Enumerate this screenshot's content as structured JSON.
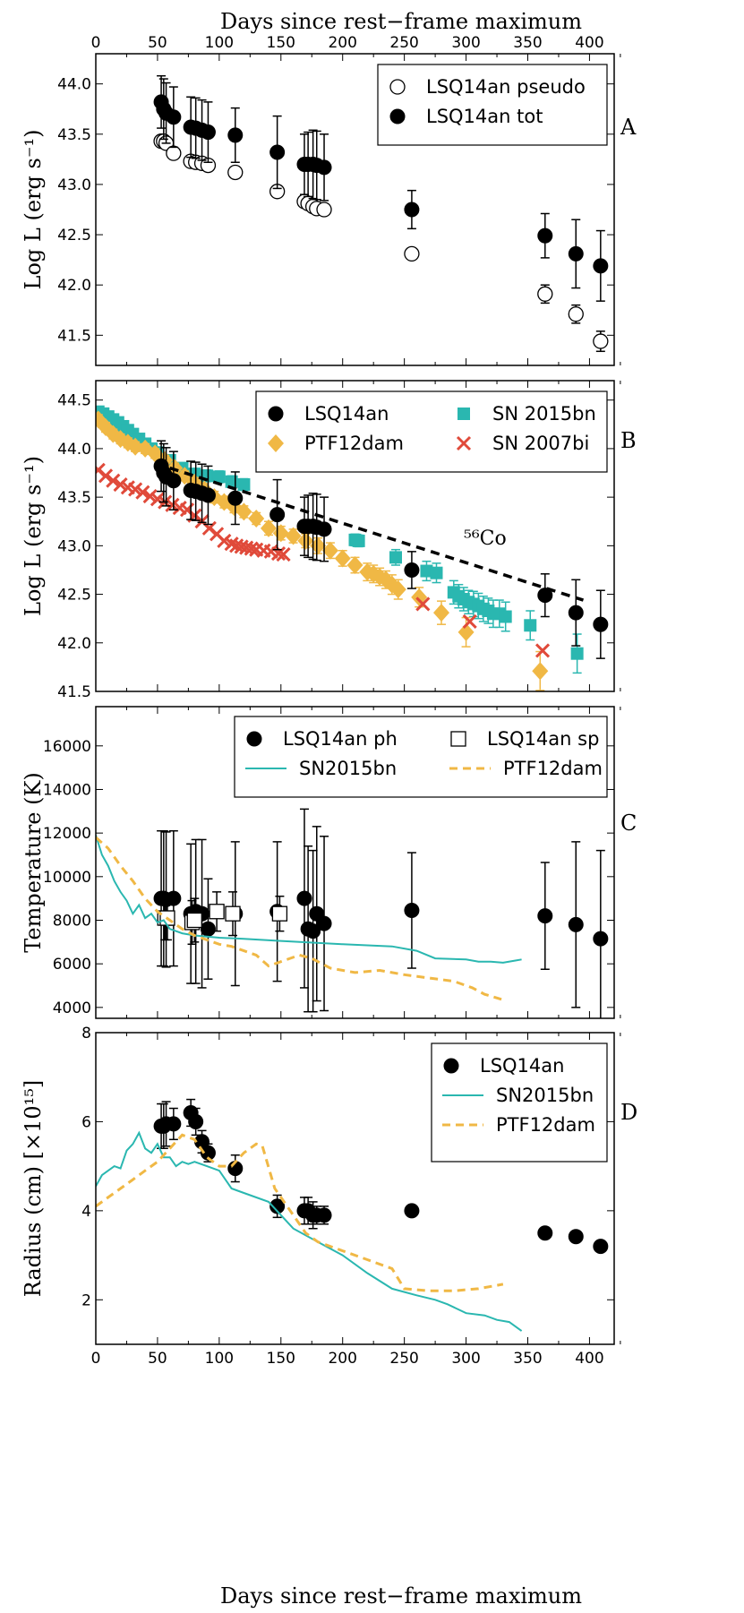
{
  "figure": {
    "top_axis_label": "Days since rest−frame maximum",
    "bottom_axis_label": "Days since rest−frame maximum",
    "x_ticks": [
      "0",
      "50",
      "100",
      "150",
      "200",
      "250",
      "300",
      "350",
      "400"
    ],
    "colors": {
      "tot": "#000000",
      "sn2015bn": "#2ab7b0",
      "ptf12dam": "#f0b845",
      "sn2007bi": "#e04a3a"
    }
  },
  "chart_data": [
    {
      "panel": "A",
      "type": "scatter",
      "ylabel": "Log L (erg s⁻¹)",
      "xlim": [
        0,
        420
      ],
      "ylim": [
        41.2,
        44.3
      ],
      "y_ticks": [
        "41.5",
        "42.0",
        "42.5",
        "43.0",
        "43.5",
        "44.0"
      ],
      "legend": [
        "LSQ14an pseudo",
        "LSQ14an tot"
      ],
      "series": [
        {
          "name": "LSQ14an pseudo",
          "marker": "open-circle",
          "x": [
            53,
            55,
            57,
            63,
            77,
            81,
            86,
            91,
            113,
            147,
            169,
            172,
            176,
            179,
            185,
            256,
            364,
            389,
            409
          ],
          "y": [
            43.43,
            43.43,
            43.41,
            43.31,
            43.23,
            43.22,
            43.21,
            43.19,
            43.12,
            42.93,
            42.83,
            42.81,
            42.78,
            42.76,
            42.75,
            42.31,
            41.91,
            41.71,
            41.44
          ],
          "yerr": [
            0.04,
            0.04,
            0.04,
            0.04,
            0.04,
            0.04,
            0.04,
            0.04,
            0.04,
            0.05,
            0.04,
            0.04,
            0.04,
            0.04,
            0.04,
            0.04,
            0.09,
            0.09,
            0.1
          ]
        },
        {
          "name": "LSQ14an tot",
          "marker": "filled-circle",
          "x": [
            53,
            55,
            57,
            63,
            77,
            81,
            86,
            91,
            113,
            147,
            169,
            172,
            176,
            179,
            185,
            256,
            364,
            389,
            409
          ],
          "y": [
            43.82,
            43.75,
            43.71,
            43.67,
            43.57,
            43.56,
            43.54,
            43.52,
            43.49,
            43.32,
            43.2,
            43.2,
            43.2,
            43.19,
            43.17,
            42.75,
            42.49,
            42.31,
            42.19
          ],
          "yerr": [
            0.26,
            0.3,
            0.3,
            0.3,
            0.3,
            0.3,
            0.3,
            0.3,
            0.27,
            0.36,
            0.3,
            0.32,
            0.34,
            0.34,
            0.33,
            0.19,
            0.22,
            0.34,
            0.35
          ]
        }
      ]
    },
    {
      "panel": "B",
      "type": "scatter",
      "ylabel": "Log L (erg s⁻¹)",
      "xlim": [
        0,
        420
      ],
      "ylim": [
        41.5,
        44.7
      ],
      "y_ticks": [
        "41.5",
        "42.0",
        "42.5",
        "43.0",
        "43.5",
        "44.0",
        "44.5"
      ],
      "legend": [
        "LSQ14an",
        "SN 2015bn",
        "PTF12dam",
        "SN 2007bi"
      ],
      "annotation": "⁵⁶Co",
      "series": [
        {
          "name": "SN 2015bn",
          "marker": "square",
          "x": [
            2,
            6,
            10,
            14,
            18,
            22,
            26,
            30,
            35,
            40,
            45,
            50,
            60,
            70,
            80,
            90,
            100,
            110,
            120,
            210,
            213,
            243,
            268,
            276,
            290,
            294,
            298,
            302,
            306,
            310,
            314,
            318,
            322,
            327,
            332,
            352,
            390
          ],
          "y": [
            44.38,
            44.36,
            44.33,
            44.3,
            44.27,
            44.23,
            44.19,
            44.15,
            44.1,
            44.05,
            44.0,
            43.96,
            43.88,
            43.8,
            43.74,
            43.72,
            43.71,
            43.66,
            43.63,
            43.06,
            43.05,
            42.88,
            42.74,
            42.72,
            42.52,
            42.48,
            42.45,
            42.42,
            42.4,
            42.38,
            42.35,
            42.33,
            42.3,
            42.3,
            42.27,
            42.18,
            41.89
          ],
          "yerr": [
            0.04,
            0.04,
            0.04,
            0.04,
            0.04,
            0.04,
            0.04,
            0.04,
            0.05,
            0.05,
            0.05,
            0.05,
            0.05,
            0.05,
            0.05,
            0.06,
            0.06,
            0.06,
            0.06,
            0.06,
            0.06,
            0.08,
            0.1,
            0.1,
            0.12,
            0.12,
            0.12,
            0.12,
            0.13,
            0.13,
            0.13,
            0.13,
            0.14,
            0.14,
            0.15,
            0.15,
            0.2
          ]
        },
        {
          "name": "PTF12dam",
          "marker": "diamond",
          "x": [
            2,
            8,
            14,
            20,
            26,
            32,
            40,
            48,
            56,
            64,
            72,
            80,
            88,
            96,
            104,
            112,
            120,
            130,
            140,
            150,
            160,
            170,
            180,
            190,
            200,
            210,
            220,
            225,
            230,
            235,
            240,
            245,
            262,
            280,
            300,
            360
          ],
          "y": [
            44.3,
            44.22,
            44.15,
            44.1,
            44.06,
            44.02,
            44.0,
            43.95,
            43.88,
            43.8,
            43.72,
            43.65,
            43.58,
            43.5,
            43.45,
            43.4,
            43.35,
            43.28,
            43.18,
            43.13,
            43.1,
            43.05,
            43.0,
            42.95,
            42.87,
            42.8,
            42.73,
            42.71,
            42.68,
            42.65,
            42.6,
            42.55,
            42.47,
            42.31,
            42.11,
            41.71
          ],
          "yerr": [
            0.05,
            0.05,
            0.05,
            0.05,
            0.05,
            0.05,
            0.05,
            0.05,
            0.05,
            0.05,
            0.05,
            0.05,
            0.06,
            0.06,
            0.06,
            0.06,
            0.06,
            0.06,
            0.07,
            0.07,
            0.07,
            0.07,
            0.08,
            0.08,
            0.08,
            0.08,
            0.09,
            0.09,
            0.09,
            0.09,
            0.1,
            0.1,
            0.1,
            0.12,
            0.15,
            0.2
          ]
        },
        {
          "name": "SN 2007bi",
          "marker": "x",
          "x": [
            2,
            8,
            14,
            20,
            26,
            32,
            38,
            44,
            50,
            56,
            62,
            68,
            74,
            80,
            86,
            92,
            98,
            104,
            110,
            114,
            118,
            122,
            126,
            130,
            136,
            142,
            148,
            152,
            265,
            303,
            362
          ],
          "y": [
            43.78,
            43.72,
            43.67,
            43.63,
            43.6,
            43.58,
            43.55,
            43.51,
            43.48,
            43.45,
            43.42,
            43.39,
            43.37,
            43.31,
            43.25,
            43.18,
            43.12,
            43.05,
            43.02,
            43.0,
            42.99,
            42.98,
            42.97,
            42.96,
            42.95,
            42.94,
            42.92,
            42.91,
            42.4,
            42.22,
            41.92
          ],
          "yerr": []
        },
        {
          "name": "LSQ14an",
          "marker": "filled-circle",
          "x": [
            53,
            55,
            57,
            63,
            77,
            81,
            86,
            91,
            113,
            147,
            169,
            172,
            176,
            179,
            185,
            256,
            364,
            389,
            409
          ],
          "y": [
            43.82,
            43.75,
            43.71,
            43.67,
            43.57,
            43.56,
            43.54,
            43.52,
            43.49,
            43.32,
            43.2,
            43.2,
            43.2,
            43.19,
            43.17,
            42.75,
            42.49,
            42.31,
            42.19
          ],
          "yerr": [
            0.26,
            0.3,
            0.3,
            0.3,
            0.3,
            0.3,
            0.3,
            0.3,
            0.27,
            0.36,
            0.3,
            0.32,
            0.34,
            0.34,
            0.33,
            0.19,
            0.22,
            0.34,
            0.35
          ]
        },
        {
          "name": "56Co decay",
          "marker": "dashed-line",
          "x": [
            60,
            395
          ],
          "y": [
            43.8,
            42.44
          ]
        }
      ]
    },
    {
      "panel": "C",
      "type": "line",
      "ylabel": "Temperature (K)",
      "xlim": [
        0,
        420
      ],
      "ylim": [
        3500,
        17800
      ],
      "y_ticks": [
        "4000",
        "6000",
        "8000",
        "10000",
        "12000",
        "14000",
        "16000"
      ],
      "legend": [
        "LSQ14an ph",
        "LSQ14an sp",
        "SN2015bn",
        "PTF12dam"
      ],
      "series": [
        {
          "name": "LSQ14an ph",
          "marker": "filled-circle",
          "x": [
            53,
            55,
            57,
            63,
            77,
            81,
            86,
            91,
            113,
            147,
            169,
            172,
            176,
            179,
            185,
            256,
            364,
            389,
            409
          ],
          "y": [
            9000,
            9000,
            8950,
            9000,
            8300,
            8400,
            8300,
            7600,
            8300,
            8400,
            9000,
            7600,
            7500,
            8300,
            7850,
            8450,
            8200,
            7800,
            7150
          ],
          "yerr": [
            3100,
            3100,
            3100,
            3100,
            3200,
            3300,
            3400,
            2300,
            3300,
            3200,
            4100,
            3800,
            3700,
            4000,
            4000,
            2650,
            2450,
            3800,
            4050
          ]
        },
        {
          "name": "LSQ14an sp",
          "marker": "open-square",
          "x": [
            56,
            58,
            78,
            80,
            98,
            111,
            149
          ],
          "y": [
            8100,
            8100,
            7900,
            8000,
            8400,
            8300,
            8300
          ],
          "yerr": [
            1000,
            1000,
            1000,
            1000,
            900,
            1000,
            800
          ]
        },
        {
          "name": "SN2015bn",
          "marker": "line",
          "x": [
            0,
            5,
            10,
            15,
            20,
            25,
            30,
            35,
            40,
            45,
            50,
            55,
            60,
            70,
            80,
            100,
            120,
            150,
            200,
            240,
            260,
            275,
            300,
            310,
            320,
            330,
            340,
            345
          ],
          "y": [
            11900,
            11000,
            10500,
            9800,
            9300,
            8900,
            8300,
            8700,
            8100,
            8300,
            7900,
            8000,
            7600,
            7400,
            7300,
            7200,
            7150,
            7050,
            6900,
            6800,
            6600,
            6250,
            6200,
            6100,
            6100,
            6050,
            6150,
            6200
          ]
        },
        {
          "name": "PTF12dam",
          "marker": "dashed-line",
          "x": [
            0,
            10,
            20,
            30,
            40,
            50,
            60,
            70,
            80,
            90,
            100,
            110,
            120,
            130,
            140,
            150,
            165,
            175,
            190,
            210,
            230,
            250,
            270,
            290,
            305,
            315,
            330
          ],
          "y": [
            11800,
            11300,
            10500,
            9800,
            9000,
            8400,
            8000,
            7600,
            7300,
            7100,
            6900,
            6800,
            6600,
            6400,
            5900,
            6100,
            6400,
            6250,
            5800,
            5600,
            5700,
            5500,
            5350,
            5200,
            4900,
            4600,
            4350
          ]
        }
      ]
    },
    {
      "panel": "D",
      "type": "line",
      "ylabel": "Radius (cm) [×10¹⁵]",
      "xlim": [
        0,
        420
      ],
      "ylim": [
        1,
        8
      ],
      "y_ticks": [
        "2",
        "4",
        "6",
        "8"
      ],
      "legend": [
        "LSQ14an",
        "SN2015bn",
        "PTF12dam"
      ],
      "series": [
        {
          "name": "LSQ14an",
          "marker": "filled-circle",
          "x": [
            53,
            55,
            57,
            63,
            77,
            81,
            86,
            91,
            113,
            147,
            169,
            172,
            176,
            179,
            185,
            256,
            364,
            389,
            409
          ],
          "y": [
            5.9,
            5.9,
            5.95,
            5.95,
            6.2,
            6.0,
            5.55,
            5.3,
            4.95,
            4.1,
            4.0,
            4.0,
            3.9,
            3.9,
            3.9,
            4.0,
            3.5,
            3.42,
            3.2
          ],
          "yerr": [
            0.5,
            0.5,
            0.5,
            0.35,
            0.3,
            0.3,
            0.25,
            0.2,
            0.3,
            0.25,
            0.3,
            0.3,
            0.3,
            0.2,
            0.2,
            0.0,
            0.0,
            0.0,
            0.0
          ]
        },
        {
          "name": "SN2015bn",
          "marker": "line",
          "x": [
            0,
            5,
            10,
            15,
            20,
            25,
            30,
            35,
            40,
            45,
            50,
            55,
            60,
            65,
            70,
            75,
            80,
            90,
            100,
            110,
            120,
            140,
            160,
            180,
            200,
            220,
            240,
            260,
            275,
            285,
            300,
            315,
            325,
            335,
            345
          ],
          "y": [
            4.55,
            4.8,
            4.9,
            5.0,
            4.95,
            5.35,
            5.5,
            5.75,
            5.4,
            5.3,
            5.5,
            5.2,
            5.2,
            5.0,
            5.1,
            5.05,
            5.1,
            5.0,
            4.9,
            4.5,
            4.4,
            4.2,
            3.6,
            3.3,
            3.0,
            2.6,
            2.25,
            2.1,
            2.0,
            1.9,
            1.7,
            1.65,
            1.55,
            1.5,
            1.3
          ]
        },
        {
          "name": "PTF12dam",
          "marker": "dashed-line",
          "x": [
            0,
            10,
            20,
            30,
            40,
            50,
            60,
            70,
            80,
            90,
            100,
            110,
            120,
            130,
            135,
            145,
            160,
            170,
            180,
            200,
            220,
            240,
            250,
            270,
            290,
            310,
            330
          ],
          "y": [
            4.1,
            4.3,
            4.5,
            4.7,
            4.9,
            5.1,
            5.4,
            5.7,
            5.6,
            5.2,
            5.0,
            5.0,
            5.3,
            5.5,
            5.45,
            4.5,
            3.9,
            3.5,
            3.3,
            3.1,
            2.9,
            2.7,
            2.25,
            2.2,
            2.2,
            2.25,
            2.35
          ]
        }
      ]
    }
  ]
}
